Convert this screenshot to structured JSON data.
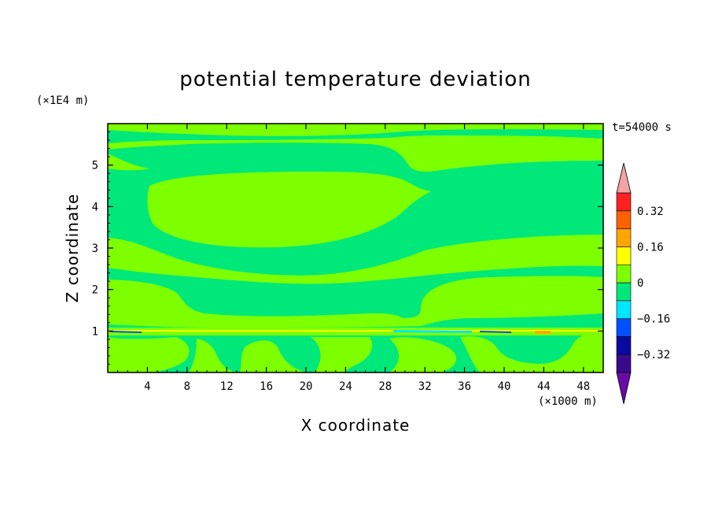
{
  "chart_data": {
    "type": "heatmap",
    "title": "potential temperature deviation",
    "xlabel": "X coordinate",
    "ylabel": "Z coordinate",
    "x_unit": "(×1000 m)",
    "y_unit": "(×1E4 m)",
    "time_label": "t=54000 s",
    "xlim": [
      0,
      50
    ],
    "ylim": [
      0,
      6
    ],
    "x_ticks": [
      4,
      8,
      12,
      16,
      20,
      24,
      28,
      32,
      36,
      40,
      44,
      48
    ],
    "y_ticks": [
      1,
      2,
      3,
      4,
      5
    ],
    "colorbar": {
      "levels": [
        -0.4,
        -0.32,
        -0.24,
        -0.16,
        -0.08,
        0,
        0.08,
        0.16,
        0.24,
        0.32,
        0.4
      ],
      "labeled": [
        0.32,
        0.16,
        0,
        -0.16,
        -0.32
      ],
      "colors_low_to_high": [
        "#3a0a8c",
        "#0a0aa0",
        "#0050ff",
        "#00e6ff",
        "#00e87a",
        "#7dff00",
        "#ffff00",
        "#ffa500",
        "#ff6000",
        "#ff2020"
      ],
      "under_color": "#6a0aa8",
      "over_color": "#f3a3a3"
    },
    "regions": {
      "background_color": "#00e87a",
      "band_color": "#7dff00"
    }
  }
}
